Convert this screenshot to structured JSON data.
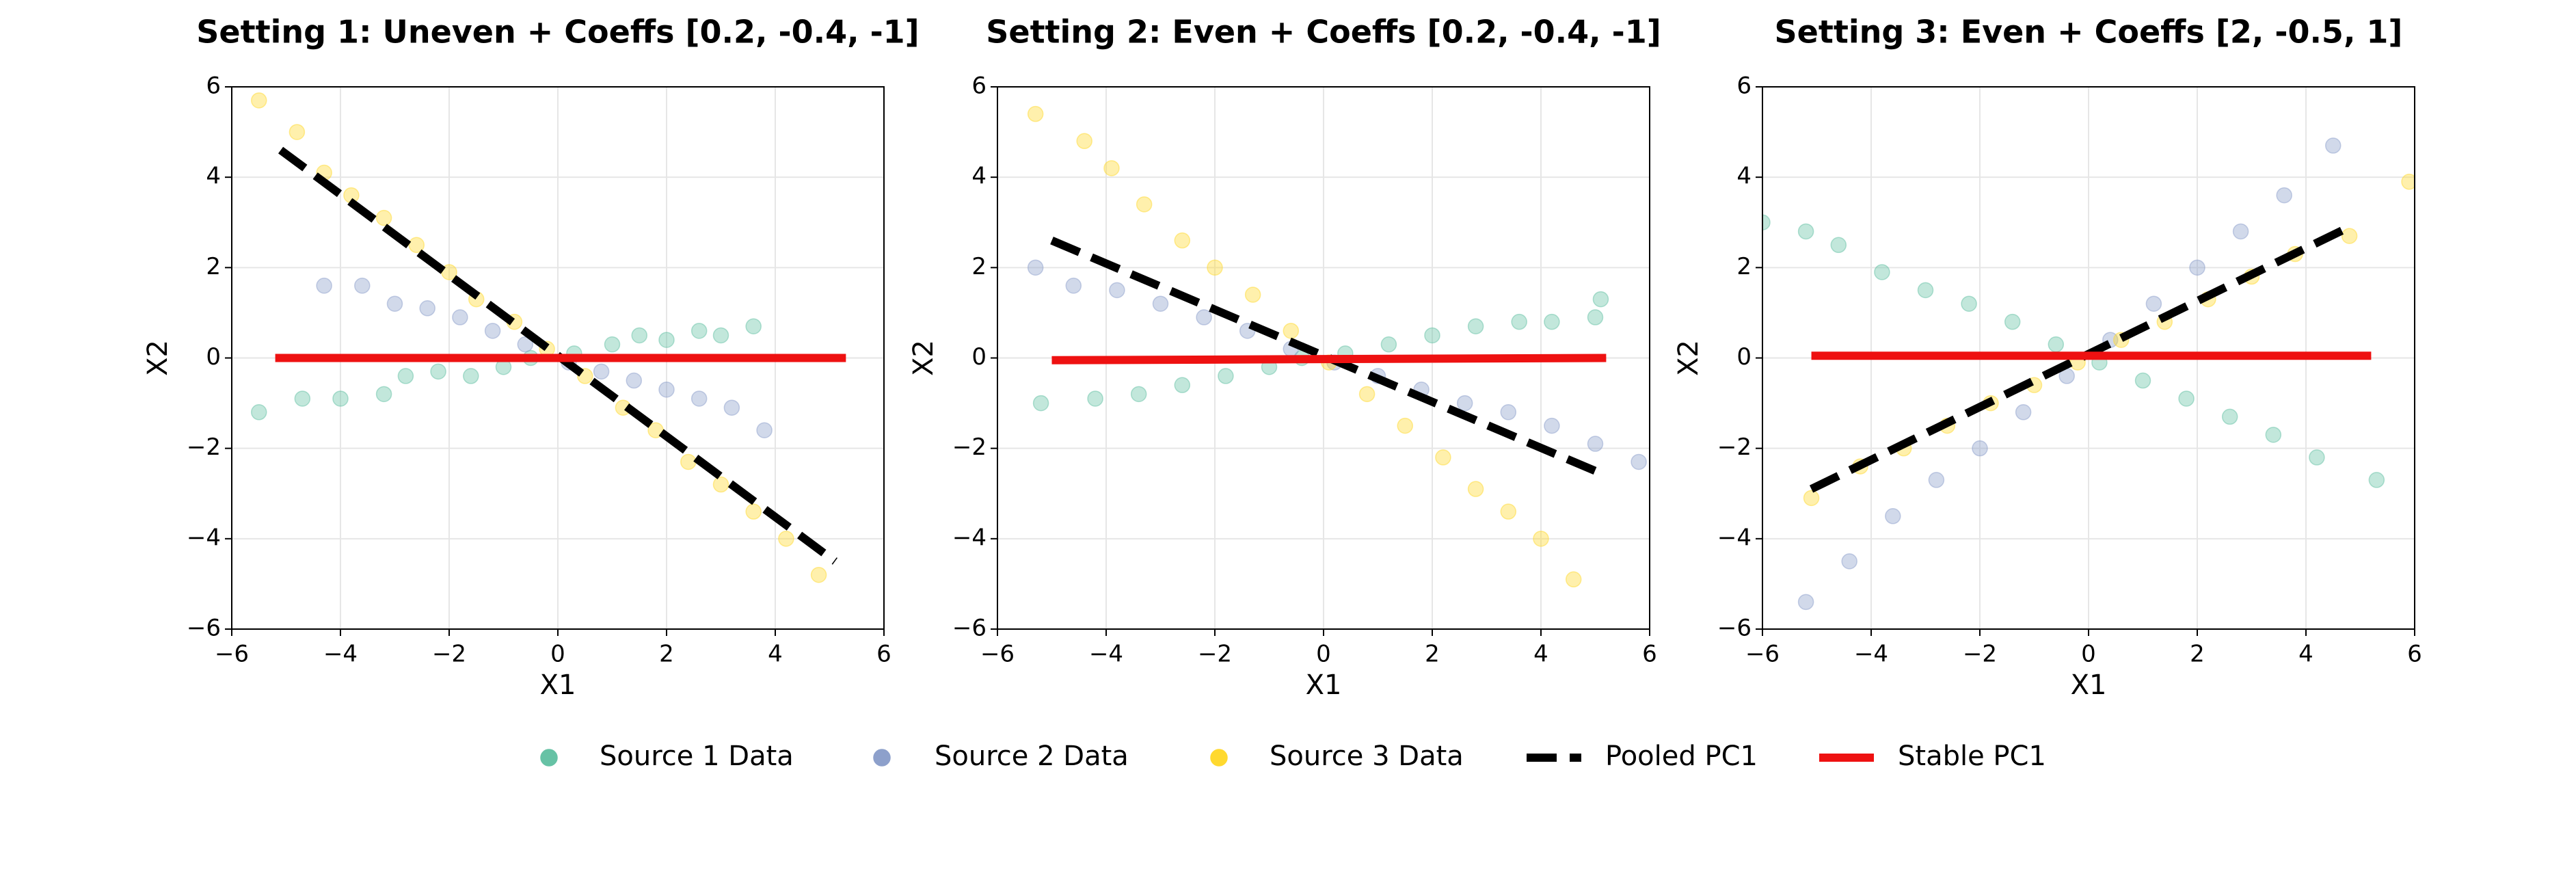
{
  "chart_data": [
    {
      "type": "scatter",
      "title": "Setting 1: Uneven + Coeffs [0.2, -0.4, -1]",
      "xlabel": "X1",
      "ylabel": "X2",
      "xlim": [
        -6,
        6
      ],
      "ylim": [
        -6,
        6
      ],
      "xticks": [
        {
          "value": -6,
          "label": "−6"
        },
        {
          "value": -4,
          "label": "−4"
        },
        {
          "value": -2,
          "label": "−2"
        },
        0,
        2,
        4,
        6
      ],
      "yticks": [
        {
          "value": -6,
          "label": "−6"
        },
        {
          "value": -4,
          "label": "−4"
        },
        {
          "value": -2,
          "label": "−2"
        },
        0,
        2,
        4,
        6
      ],
      "grid": true,
      "series": [
        {
          "color": "#66c2a5",
          "style": "points",
          "x": [
            -5.5,
            -4.7,
            -4,
            -3.2,
            -2.8,
            -2.2,
            -1.6,
            -1,
            -0.5,
            0.3,
            1,
            1.5,
            2,
            2.6,
            3,
            3.6
          ],
          "y": [
            -1.2,
            -0.9,
            -0.9,
            -0.8,
            -0.4,
            -0.3,
            -0.4,
            -0.2,
            0,
            0.1,
            0.3,
            0.5,
            0.4,
            0.6,
            0.5,
            0.7
          ]
        },
        {
          "color": "#8da0cb",
          "style": "points",
          "x": [
            -4.3,
            -3.6,
            -3,
            -2.4,
            -1.8,
            -1.2,
            -0.6,
            0.2,
            0.8,
            1.4,
            2,
            2.6,
            3.2,
            3.8
          ],
          "y": [
            1.6,
            1.6,
            1.2,
            1.1,
            0.9,
            0.6,
            0.3,
            -0.1,
            -0.3,
            -0.5,
            -0.7,
            -0.9,
            -1.1,
            -1.6
          ]
        },
        {
          "color": "#ffd92f",
          "style": "points",
          "x": [
            -5.5,
            -4.8,
            -4.3,
            -3.8,
            -3.2,
            -2.6,
            -2,
            -1.5,
            -0.8,
            -0.2,
            0.5,
            1.2,
            1.8,
            2.4,
            3,
            3.6,
            4.2,
            4.8
          ],
          "y": [
            5.7,
            5,
            4.1,
            3.6,
            3.1,
            2.5,
            1.9,
            1.3,
            0.8,
            0.2,
            -0.4,
            -1.1,
            -1.6,
            -2.3,
            -2.8,
            -3.4,
            -4,
            -4.8
          ]
        },
        {
          "color": "#000000",
          "style": "dashed",
          "x": [
            -5.1,
            5.1
          ],
          "y": [
            4.6,
            -4.5
          ]
        },
        {
          "color": "#ee1111",
          "style": "solid",
          "x": [
            -5.2,
            5.3
          ],
          "y": [
            0,
            0
          ]
        }
      ]
    },
    {
      "type": "scatter",
      "title": "Setting 2: Even + Coeffs [0.2, -0.4, -1]",
      "xlabel": "X1",
      "ylabel": "X2",
      "xlim": [
        -6,
        6
      ],
      "ylim": [
        -6,
        6
      ],
      "xticks": [
        {
          "value": -6,
          "label": "−6"
        },
        {
          "value": -4,
          "label": "−4"
        },
        {
          "value": -2,
          "label": "−2"
        },
        0,
        2,
        4,
        6
      ],
      "yticks": [
        {
          "value": -6,
          "label": "−6"
        },
        {
          "value": -4,
          "label": "−4"
        },
        {
          "value": -2,
          "label": "−2"
        },
        0,
        2,
        4,
        6
      ],
      "grid": true,
      "series": [
        {
          "color": "#66c2a5",
          "style": "points",
          "x": [
            -5.2,
            -4.2,
            -3.4,
            -2.6,
            -1.8,
            -1,
            -0.4,
            0.4,
            1.2,
            2,
            2.8,
            3.6,
            4.2,
            5,
            5.1
          ],
          "y": [
            -1,
            -0.9,
            -0.8,
            -0.6,
            -0.4,
            -0.2,
            0,
            0.1,
            0.3,
            0.5,
            0.7,
            0.8,
            0.8,
            0.9,
            1.3
          ]
        },
        {
          "color": "#8da0cb",
          "style": "points",
          "x": [
            -5.3,
            -4.6,
            -3.8,
            -3,
            -2.2,
            -1.4,
            -0.6,
            0.2,
            1,
            1.8,
            2.6,
            3.4,
            4.2,
            5,
            5.8
          ],
          "y": [
            2,
            1.6,
            1.5,
            1.2,
            0.9,
            0.6,
            0.2,
            -0.1,
            -0.4,
            -0.7,
            -1,
            -1.2,
            -1.5,
            -1.9,
            -2.3
          ]
        },
        {
          "color": "#ffd92f",
          "style": "points",
          "x": [
            -5.3,
            -4.4,
            -3.9,
            -3.3,
            -2.6,
            -2,
            -1.3,
            -0.6,
            0.1,
            0.8,
            1.5,
            2.2,
            2.8,
            3.4,
            4,
            4.6
          ],
          "y": [
            5.4,
            4.8,
            4.2,
            3.4,
            2.6,
            2,
            1.4,
            0.6,
            -0.1,
            -0.8,
            -1.5,
            -2.2,
            -2.9,
            -3.4,
            -4,
            -4.9
          ]
        },
        {
          "color": "#000000",
          "style": "dashed",
          "x": [
            -5,
            5
          ],
          "y": [
            2.6,
            -2.5
          ]
        },
        {
          "color": "#ee1111",
          "style": "solid",
          "x": [
            -5,
            5.2
          ],
          "y": [
            -0.05,
            0
          ]
        }
      ]
    },
    {
      "type": "scatter",
      "title": "Setting 3: Even + Coeffs [2, -0.5, 1]",
      "xlabel": "X1",
      "ylabel": "X2",
      "xlim": [
        -6,
        6
      ],
      "ylim": [
        -6,
        6
      ],
      "xticks": [
        {
          "value": -6,
          "label": "−6"
        },
        {
          "value": -4,
          "label": "−4"
        },
        {
          "value": -2,
          "label": "−2"
        },
        0,
        2,
        4,
        6
      ],
      "yticks": [
        {
          "value": -6,
          "label": "−6"
        },
        {
          "value": -4,
          "label": "−4"
        },
        {
          "value": -2,
          "label": "−2"
        },
        0,
        2,
        4,
        6
      ],
      "grid": true,
      "series": [
        {
          "color": "#66c2a5",
          "style": "points",
          "x": [
            -6,
            -5.2,
            -4.6,
            -3.8,
            -3,
            -2.2,
            -1.4,
            -0.6,
            0.2,
            1,
            1.8,
            2.6,
            3.4,
            4.2,
            5.3
          ],
          "y": [
            3,
            2.8,
            2.5,
            1.9,
            1.5,
            1.2,
            0.8,
            0.3,
            -0.1,
            -0.5,
            -0.9,
            -1.3,
            -1.7,
            -2.2,
            -2.7
          ]
        },
        {
          "color": "#8da0cb",
          "style": "points",
          "x": [
            -5.2,
            -4.4,
            -3.6,
            -2.8,
            -2,
            -1.2,
            -0.4,
            0.4,
            1.2,
            2,
            2.8,
            3.6,
            4.5
          ],
          "y": [
            -5.4,
            -4.5,
            -3.5,
            -2.7,
            -2,
            -1.2,
            -0.4,
            0.4,
            1.2,
            2,
            2.8,
            3.6,
            4.7
          ]
        },
        {
          "color": "#ffd92f",
          "style": "points",
          "x": [
            -5.1,
            -4.2,
            -3.4,
            -2.6,
            -1.8,
            -1,
            -0.2,
            0.6,
            1.4,
            2.2,
            3,
            3.8,
            4.8,
            5.9
          ],
          "y": [
            -3.1,
            -2.4,
            -2,
            -1.5,
            -1,
            -0.6,
            -0.1,
            0.4,
            0.8,
            1.3,
            1.8,
            2.3,
            2.7,
            3.9
          ]
        },
        {
          "color": "#000000",
          "style": "dashed",
          "x": [
            -5.1,
            4.8
          ],
          "y": [
            -2.9,
            2.9
          ]
        },
        {
          "color": "#ee1111",
          "style": "solid",
          "x": [
            -5.1,
            5.2
          ],
          "y": [
            0.05,
            0.05
          ]
        }
      ]
    }
  ],
  "legend": [
    {
      "name": "Source 1 Data",
      "color": "#66c2a5",
      "style": "points"
    },
    {
      "name": "Source 2 Data",
      "color": "#8da0cb",
      "style": "points"
    },
    {
      "name": "Source 3 Data",
      "color": "#ffd92f",
      "style": "points"
    },
    {
      "name": "Pooled PC1",
      "color": "#000000",
      "style": "dashed"
    },
    {
      "name": "Stable PC1",
      "color": "#ee1111",
      "style": "solid"
    }
  ]
}
